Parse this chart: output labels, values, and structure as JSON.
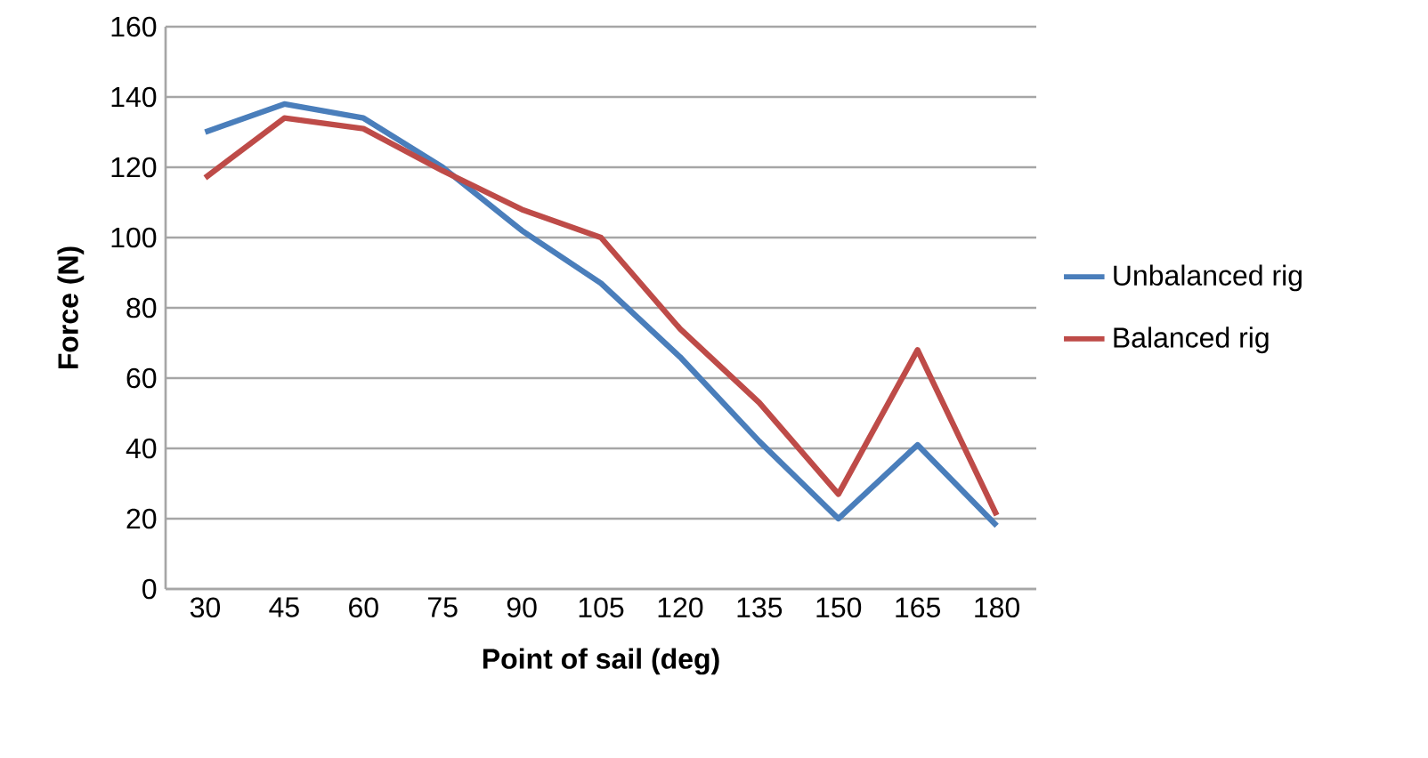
{
  "chart_data": {
    "type": "line",
    "xlabel": "Point of sail (deg)",
    "ylabel": "Force (N)",
    "categories": [
      "30",
      "45",
      "60",
      "75",
      "90",
      "105",
      "120",
      "135",
      "150",
      "165",
      "180"
    ],
    "series": [
      {
        "name": "Unbalanced rig",
        "color": "#4a7ebb",
        "values": [
          130,
          138,
          134,
          120,
          102,
          87,
          66,
          42,
          20,
          41,
          18
        ]
      },
      {
        "name": "Balanced rig",
        "color": "#be4b48",
        "values": [
          117,
          134,
          131,
          119,
          108,
          100,
          74,
          53,
          27,
          68,
          21
        ]
      }
    ],
    "ylim": [
      0,
      160
    ],
    "yticks": [
      0,
      20,
      40,
      60,
      80,
      100,
      120,
      140,
      160
    ],
    "grid": "y",
    "legend": "right",
    "marker": "none",
    "line_style": "solid"
  }
}
